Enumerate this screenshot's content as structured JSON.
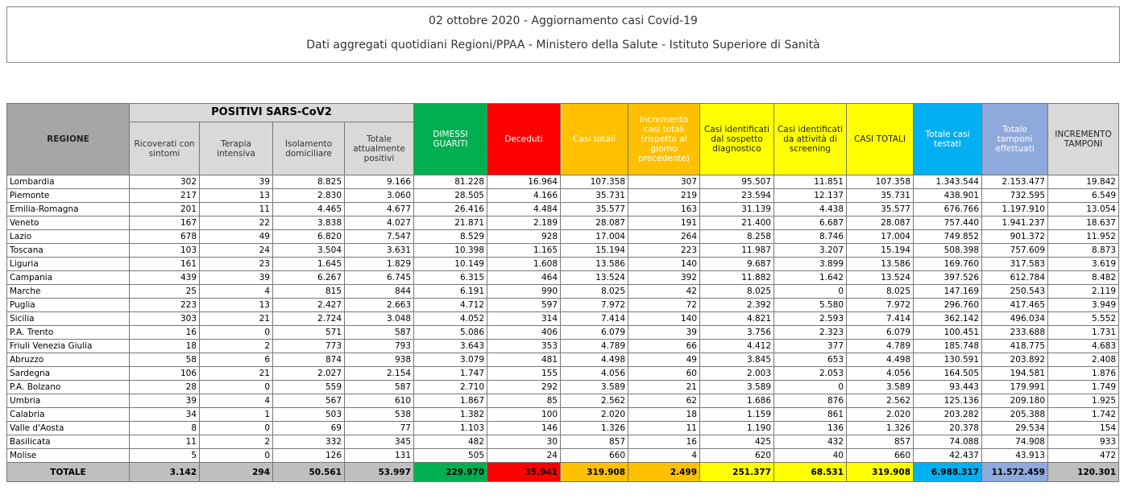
{
  "header": {
    "title": "02 ottobre 2020 - Aggiornamento casi Covid-19",
    "subtitle": "Dati aggregati quotidiani Regioni/PPAA - Ministero della Salute - Istituto Superiore di Sanità"
  },
  "table": {
    "group_header": "POSITIVI SARS-CoV2",
    "columns": [
      "REGIONE",
      "Ricoverati con sintomi",
      "Terapia intensiva",
      "Isolamento domiciliare",
      "Totale attualmente positivi",
      "DIMESSI GUARITI",
      "Deceduti",
      "Casi totali",
      "Incremento casi totali (rispetto al giorno precedente)",
      "Casi identificati dal sospetto diagnostico",
      "Casi identificati da attività di screening",
      "CASI TOTALI",
      "Totale casi testati",
      "Totale tamponi effettuati",
      "INCREMENTO TAMPONI"
    ],
    "rows": [
      [
        "Lombardia",
        "302",
        "39",
        "8.825",
        "9.166",
        "81.228",
        "16.964",
        "107.358",
        "307",
        "95.507",
        "11.851",
        "107.358",
        "1.343.544",
        "2.153.477",
        "19.842"
      ],
      [
        "Piemonte",
        "217",
        "13",
        "2.830",
        "3.060",
        "28.505",
        "4.166",
        "35.731",
        "219",
        "23.594",
        "12.137",
        "35.731",
        "438.901",
        "732.595",
        "6.549"
      ],
      [
        "Emilia-Romagna",
        "201",
        "11",
        "4.465",
        "4.677",
        "26.416",
        "4.484",
        "35.577",
        "163",
        "31.139",
        "4.438",
        "35.577",
        "676.766",
        "1.197.910",
        "13.054"
      ],
      [
        "Veneto",
        "167",
        "22",
        "3.838",
        "4.027",
        "21.871",
        "2.189",
        "28.087",
        "191",
        "21.400",
        "6.687",
        "28.087",
        "757.440",
        "1.941.237",
        "18.637"
      ],
      [
        "Lazio",
        "678",
        "49",
        "6.820",
        "7.547",
        "8.529",
        "928",
        "17.004",
        "264",
        "8.258",
        "8.746",
        "17.004",
        "749.852",
        "901.372",
        "11.952"
      ],
      [
        "Toscana",
        "103",
        "24",
        "3.504",
        "3.631",
        "10.398",
        "1.165",
        "15.194",
        "223",
        "11.987",
        "3.207",
        "15.194",
        "508.398",
        "757.609",
        "8.873"
      ],
      [
        "Liguria",
        "161",
        "23",
        "1.645",
        "1.829",
        "10.149",
        "1.608",
        "13.586",
        "140",
        "9.687",
        "3.899",
        "13.586",
        "169.760",
        "317.583",
        "3.619"
      ],
      [
        "Campania",
        "439",
        "39",
        "6.267",
        "6.745",
        "6.315",
        "464",
        "13.524",
        "392",
        "11.882",
        "1.642",
        "13.524",
        "397.526",
        "612.784",
        "8.482"
      ],
      [
        "Marche",
        "25",
        "4",
        "815",
        "844",
        "6.191",
        "990",
        "8.025",
        "42",
        "8.025",
        "0",
        "8.025",
        "147.169",
        "250.543",
        "2.119"
      ],
      [
        "Puglia",
        "223",
        "13",
        "2.427",
        "2.663",
        "4.712",
        "597",
        "7.972",
        "72",
        "2.392",
        "5.580",
        "7.972",
        "296.760",
        "417.465",
        "3.949"
      ],
      [
        "Sicilia",
        "303",
        "21",
        "2.724",
        "3.048",
        "4.052",
        "314",
        "7.414",
        "140",
        "4.821",
        "2.593",
        "7.414",
        "362.142",
        "496.034",
        "5.552"
      ],
      [
        "P.A. Trento",
        "16",
        "0",
        "571",
        "587",
        "5.086",
        "406",
        "6.079",
        "39",
        "3.756",
        "2.323",
        "6.079",
        "100.451",
        "233.688",
        "1.731"
      ],
      [
        "Friuli Venezia Giulia",
        "18",
        "2",
        "773",
        "793",
        "3.643",
        "353",
        "4.789",
        "66",
        "4.412",
        "377",
        "4.789",
        "185.748",
        "418.775",
        "4.683"
      ],
      [
        "Abruzzo",
        "58",
        "6",
        "874",
        "938",
        "3.079",
        "481",
        "4.498",
        "49",
        "3.845",
        "653",
        "4.498",
        "130.591",
        "203.892",
        "2.408"
      ],
      [
        "Sardegna",
        "106",
        "21",
        "2.027",
        "2.154",
        "1.747",
        "155",
        "4.056",
        "60",
        "2.003",
        "2.053",
        "4.056",
        "164.505",
        "194.581",
        "1.876"
      ],
      [
        "P.A. Bolzano",
        "28",
        "0",
        "559",
        "587",
        "2.710",
        "292",
        "3.589",
        "21",
        "3.589",
        "0",
        "3.589",
        "93.443",
        "179.991",
        "1.749"
      ],
      [
        "Umbria",
        "39",
        "4",
        "567",
        "610",
        "1.867",
        "85",
        "2.562",
        "62",
        "1.686",
        "876",
        "2.562",
        "125.136",
        "209.180",
        "1.925"
      ],
      [
        "Calabria",
        "34",
        "1",
        "503",
        "538",
        "1.382",
        "100",
        "2.020",
        "18",
        "1.159",
        "861",
        "2.020",
        "203.282",
        "205.388",
        "1.742"
      ],
      [
        "Valle d'Aosta",
        "8",
        "0",
        "69",
        "77",
        "1.103",
        "146",
        "1.326",
        "11",
        "1.190",
        "136",
        "1.326",
        "20.378",
        "29.534",
        "154"
      ],
      [
        "Basilicata",
        "11",
        "2",
        "332",
        "345",
        "482",
        "30",
        "857",
        "16",
        "425",
        "432",
        "857",
        "74.088",
        "74.908",
        "933"
      ],
      [
        "Molise",
        "5",
        "0",
        "126",
        "131",
        "505",
        "24",
        "660",
        "4",
        "620",
        "40",
        "660",
        "42.437",
        "43.913",
        "472"
      ]
    ],
    "total": [
      "TOTALE",
      "3.142",
      "294",
      "50.561",
      "53.997",
      "229.970",
      "35.941",
      "319.908",
      "2.499",
      "251.377",
      "68.531",
      "319.908",
      "6.988.317",
      "11.572.459",
      "120.301"
    ]
  }
}
